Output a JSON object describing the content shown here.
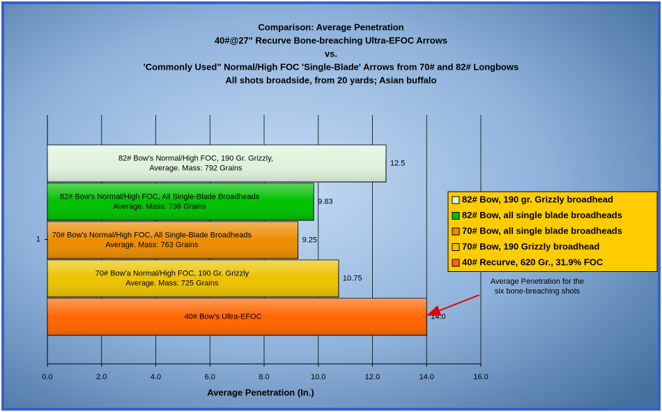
{
  "chart_data": {
    "type": "bar",
    "orientation": "horizontal",
    "title_lines": [
      "Comparison: Average Penetration",
      "40#@27\" Recurve Bone-breaching Ultra-EFOC Arrows",
      "vs.",
      "'Commonly Used\" Normal/High FOC 'Single-Blade' Arrows from 70# and 82# Longbows",
      "All shots broadside, from 20 yards; Asian buffalo"
    ],
    "x_label": "Average Penetration (In.)",
    "categories": [
      "1"
    ],
    "series": [
      {
        "name": "82# Bow, 190 gr. Grizzly broadhead",
        "color": "#dff3dc",
        "values": [
          12.5
        ],
        "value_labels": [
          "12.5"
        ],
        "label_lines": [
          "82# Bow's Normal/High FOC, 190 Gr. Grizzly,",
          "Average. Mass: 792 Grains"
        ]
      },
      {
        "name": "82# Bow, all single blade broadheads",
        "color": "#00c000",
        "values": [
          9.83
        ],
        "value_labels": [
          "9.83"
        ],
        "label_lines": [
          "82# Bow's Normal/High FOC, All Single-Blade Broadheads",
          "Average. Mass: 736 Grains"
        ]
      },
      {
        "name": "70# Bow, all single blade broadheads",
        "color": "#ec8c00",
        "values": [
          9.25
        ],
        "value_labels": [
          "9.25"
        ],
        "label_lines": [
          "70# Bow's Normal/High FOC, All Single-Blade Broadheads",
          "Average.  Mass: 763 Grains"
        ]
      },
      {
        "name": "70# Bow, 190 Grizzly broadhead",
        "color": "#ecc200",
        "values": [
          10.75
        ],
        "value_labels": [
          "10.75"
        ],
        "label_lines": [
          "70# Bow'a Normal/High FOC, 190 Gr. Grizzly",
          "Average. Mass: 725 Grains"
        ]
      },
      {
        "name": "40# Recurve, 620 Gr., 31.9% FOC",
        "color": "#ff6600",
        "values": [
          14.0
        ],
        "value_labels": [
          "14.0"
        ],
        "label_lines": [
          "40# Bow's Ultra-EFOC"
        ]
      }
    ],
    "xlim": [
      0,
      16
    ],
    "xticks": [
      {
        "value": 0,
        "label": "0.0"
      },
      {
        "value": 2,
        "label": "2.0"
      },
      {
        "value": 4,
        "label": "4.0"
      },
      {
        "value": 6,
        "label": "6.0"
      },
      {
        "value": 8,
        "label": "8.0"
      },
      {
        "value": 10,
        "label": "10.0"
      },
      {
        "value": 12,
        "label": "12.0"
      },
      {
        "value": 14,
        "label": "14.0"
      },
      {
        "value": 16,
        "label": "16.0"
      }
    ],
    "grid": true,
    "legend": "right",
    "annotation": {
      "lines": [
        "Average Penetration for the",
        "six bone-breaching shots"
      ],
      "color": "#e00000"
    }
  }
}
